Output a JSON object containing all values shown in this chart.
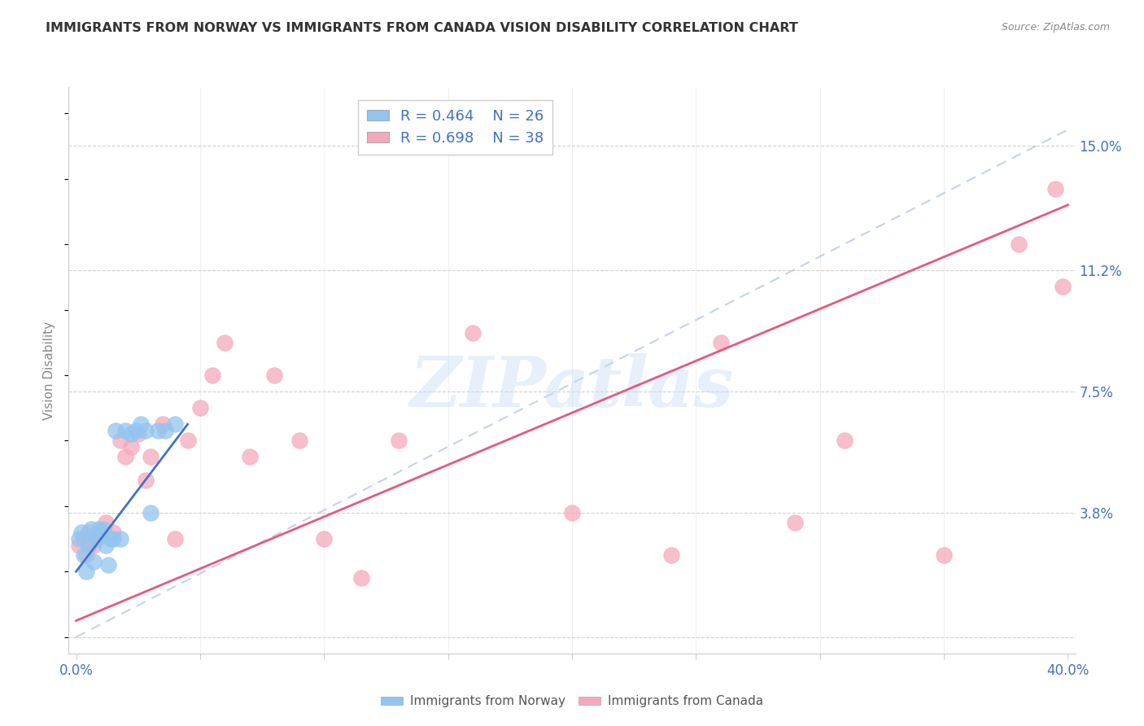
{
  "title": "IMMIGRANTS FROM NORWAY VS IMMIGRANTS FROM CANADA VISION DISABILITY CORRELATION CHART",
  "source": "Source: ZipAtlas.com",
  "ylabel": "Vision Disability",
  "xlabel": "",
  "xlim": [
    -0.003,
    0.403
  ],
  "ylim": [
    -0.005,
    0.168
  ],
  "yticks": [
    0.0,
    0.038,
    0.075,
    0.112,
    0.15
  ],
  "ytick_labels": [
    "",
    "3.8%",
    "7.5%",
    "11.2%",
    "15.0%"
  ],
  "xticks": [
    0.0,
    0.05,
    0.1,
    0.15,
    0.2,
    0.25,
    0.3,
    0.35,
    0.4
  ],
  "xtick_labels": [
    "0.0%",
    "",
    "",
    "",
    "",
    "",
    "",
    "",
    "40.0%"
  ],
  "norway_label": "Immigrants from Norway",
  "canada_label": "Immigrants from Canada",
  "norway_r": "R = 0.464",
  "norway_n": "N = 26",
  "canada_r": "R = 0.698",
  "canada_n": "N = 38",
  "norway_color": "#92C5F0",
  "canada_color": "#F5A8BC",
  "norway_line_color": "#4472C4",
  "canada_line_color": "#E85880",
  "ref_line_color": "#B8C8E0",
  "norway_x": [
    0.001,
    0.002,
    0.003,
    0.004,
    0.005,
    0.006,
    0.007,
    0.008,
    0.009,
    0.01,
    0.011,
    0.012,
    0.013,
    0.014,
    0.015,
    0.016,
    0.018,
    0.02,
    0.022,
    0.024,
    0.026,
    0.028,
    0.03,
    0.033,
    0.036,
    0.04
  ],
  "norway_y": [
    0.03,
    0.032,
    0.025,
    0.02,
    0.028,
    0.033,
    0.023,
    0.03,
    0.033,
    0.031,
    0.033,
    0.028,
    0.022,
    0.03,
    0.03,
    0.063,
    0.03,
    0.063,
    0.062,
    0.063,
    0.065,
    0.063,
    0.038,
    0.063,
    0.063,
    0.065
  ],
  "canada_x": [
    0.001,
    0.003,
    0.004,
    0.005,
    0.006,
    0.007,
    0.008,
    0.01,
    0.012,
    0.015,
    0.018,
    0.02,
    0.022,
    0.025,
    0.028,
    0.03,
    0.035,
    0.04,
    0.045,
    0.05,
    0.055,
    0.06,
    0.07,
    0.08,
    0.09,
    0.1,
    0.115,
    0.13,
    0.16,
    0.2,
    0.24,
    0.26,
    0.29,
    0.31,
    0.35,
    0.38,
    0.395,
    0.398
  ],
  "canada_y": [
    0.028,
    0.03,
    0.025,
    0.032,
    0.03,
    0.028,
    0.03,
    0.032,
    0.035,
    0.032,
    0.06,
    0.055,
    0.058,
    0.062,
    0.048,
    0.055,
    0.065,
    0.03,
    0.06,
    0.07,
    0.08,
    0.09,
    0.055,
    0.08,
    0.06,
    0.03,
    0.018,
    0.06,
    0.093,
    0.038,
    0.025,
    0.09,
    0.035,
    0.06,
    0.025,
    0.12,
    0.137,
    0.107
  ],
  "norway_trend_x": [
    0.0,
    0.045
  ],
  "norway_trend_y": [
    0.02,
    0.065
  ],
  "canada_trend_x": [
    0.0,
    0.4
  ],
  "canada_trend_y": [
    0.005,
    0.132
  ],
  "ref_line_x": [
    0.0,
    0.4
  ],
  "ref_line_y": [
    0.0,
    0.155
  ],
  "watermark": "ZIPatlas",
  "background_color": "#FFFFFF",
  "grid_color": "#CCCCCC",
  "title_color": "#333333",
  "source_color": "#888888",
  "tick_color": "#4472C4",
  "ylabel_color": "#888888"
}
